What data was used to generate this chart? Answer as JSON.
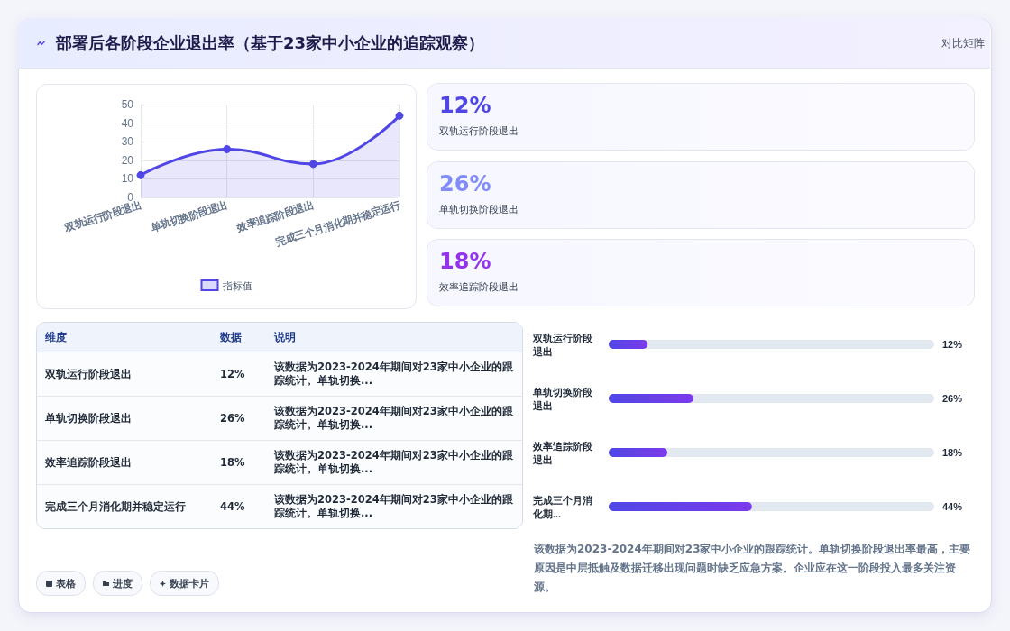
{
  "chart_data": [
    {
      "type": "other",
      "title": "部署后各阶段企业退出率（基于23家中小企业的追踪观察）",
      "subtitle": "对比矩阵"
    },
    {
      "type": "area",
      "categories": [
        "双轨运行阶段退出",
        "单轨切换阶段退出",
        "效率追踪阶段退出",
        "完成三个月消化期并稳定运行"
      ],
      "series": [
        {
          "name": "指标值",
          "color": "#4f46e5",
          "values": [
            12,
            26,
            18,
            44
          ]
        }
      ],
      "ylim": [
        0,
        50
      ],
      "yticks": [
        0,
        10,
        20,
        30,
        40,
        50
      ],
      "grid": true,
      "legend": "bottom",
      "marker": "circle"
    },
    {
      "type": "other",
      "categories": [
        "双轨运行阶段退出",
        "单轨切换阶段退出",
        "效率追踪阶段退出"
      ],
      "value_labels": [
        "12%",
        "26%",
        "18%"
      ],
      "colors": [
        "#4f46e5",
        "#818cf8",
        "#9333ea"
      ]
    },
    {
      "type": "other",
      "categories": [
        "双轨运行阶段退出",
        "单轨切换阶段退出",
        "效率追踪阶段退出",
        "完成三个月消化期并稳定运行"
      ],
      "value_labels": [
        "12%",
        "26%",
        "18%",
        "44%"
      ],
      "annotations": [
        "维度",
        "数据",
        "说明",
        "该数据为2023-2024年期间对23家中小企业的跟踪统计。单轨切换...",
        "该数据为2023-2024年期间对23家中小企业的跟踪统计。单轨切换...",
        "该数据为2023-2024年期间对23家中小企业的跟踪统计。单轨切换...",
        "该数据为2023-2024年期间对23家中小企业的跟踪统计。单轨切换...",
        "表格",
        "进度",
        "数据卡片"
      ]
    },
    {
      "type": "bar",
      "orientation": "horizontal",
      "categories": [
        "双轨运行阶段退出",
        "单轨切换阶段退出",
        "效率追踪阶段退出",
        "完成三个月消化期..."
      ],
      "values": [
        12,
        26,
        18,
        44
      ],
      "value_labels": [
        "12%",
        "26%",
        "18%",
        "44%"
      ],
      "color": "#7c3aed",
      "xlim": [
        0,
        100
      ],
      "tick_labels": "y",
      "annotations": [
        "该数据为2023-2024年期间对23家中小企业的跟踪统计。单轨切换阶段退出率最高，主要原因是中层抵触及数据迁移出现问题时缺乏应急方案。企业应在这一阶段投入最多关注资源。"
      ]
    }
  ]
}
